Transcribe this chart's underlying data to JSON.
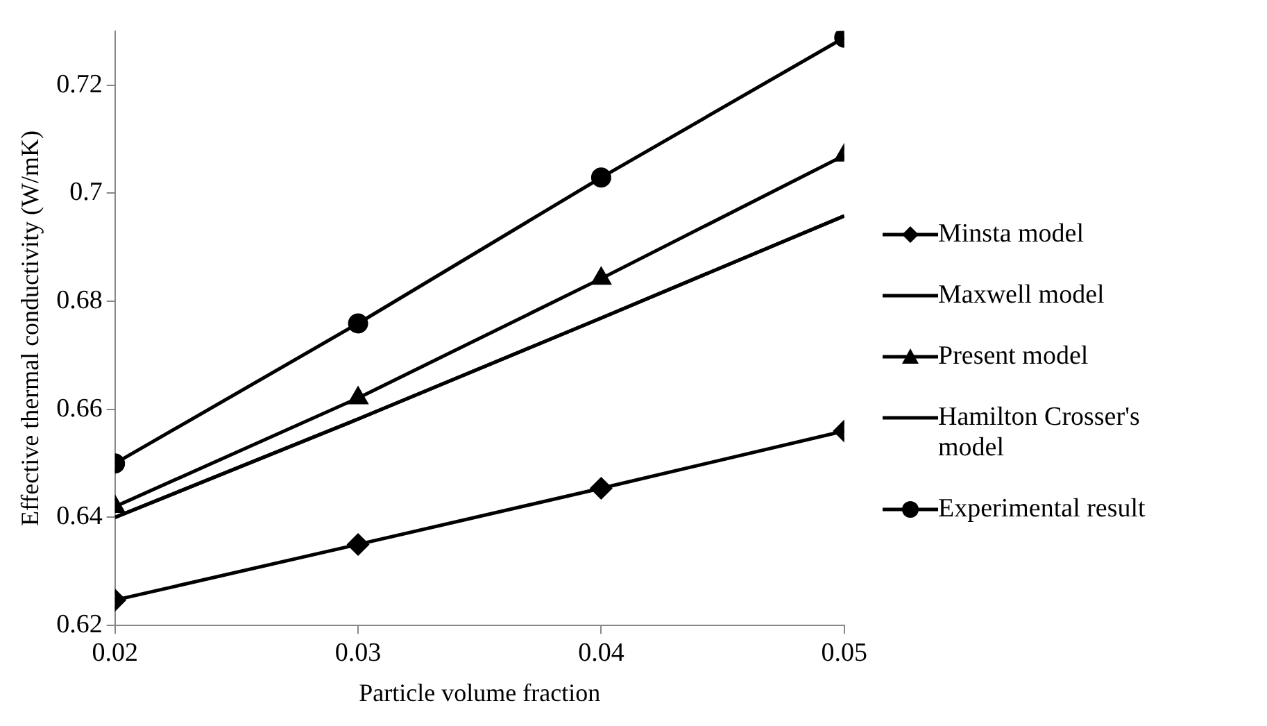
{
  "chart_data": {
    "type": "line",
    "xlabel": "Particle volume fraction",
    "ylabel": "Effective thermal conductivity (W/mK)",
    "x": [
      0.02,
      0.03,
      0.04,
      0.05
    ],
    "series": [
      {
        "name": "Minsta model",
        "color": "#000000",
        "marker": "diamond",
        "values": [
          0.6247,
          0.635,
          0.6454,
          0.656
        ]
      },
      {
        "name": "Maxwell model",
        "color": "#000000",
        "marker": "none",
        "values": [
          0.64,
          0.6582,
          0.6769,
          0.6958
        ]
      },
      {
        "name": "Present model",
        "color": "#000000",
        "marker": "triangle",
        "values": [
          0.642,
          0.6621,
          0.6842,
          0.707
        ]
      },
      {
        "name": "Hamilton Crosser's model",
        "color": "#000000",
        "marker": "none",
        "values": [
          0.64,
          0.6582,
          0.6769,
          0.6958
        ]
      },
      {
        "name": "Experimental result",
        "color": "#000000",
        "marker": "circle",
        "values": [
          0.65,
          0.6759,
          0.7029,
          0.7288
        ]
      }
    ],
    "xlim": [
      0.02,
      0.05
    ],
    "xticks": [
      0.02,
      0.03,
      0.04,
      0.05
    ],
    "ylim": [
      0.62,
      0.73
    ],
    "yticks": [
      0.62,
      0.64,
      0.66,
      0.68,
      0.7,
      0.72
    ],
    "grid": false,
    "legend": "right"
  }
}
